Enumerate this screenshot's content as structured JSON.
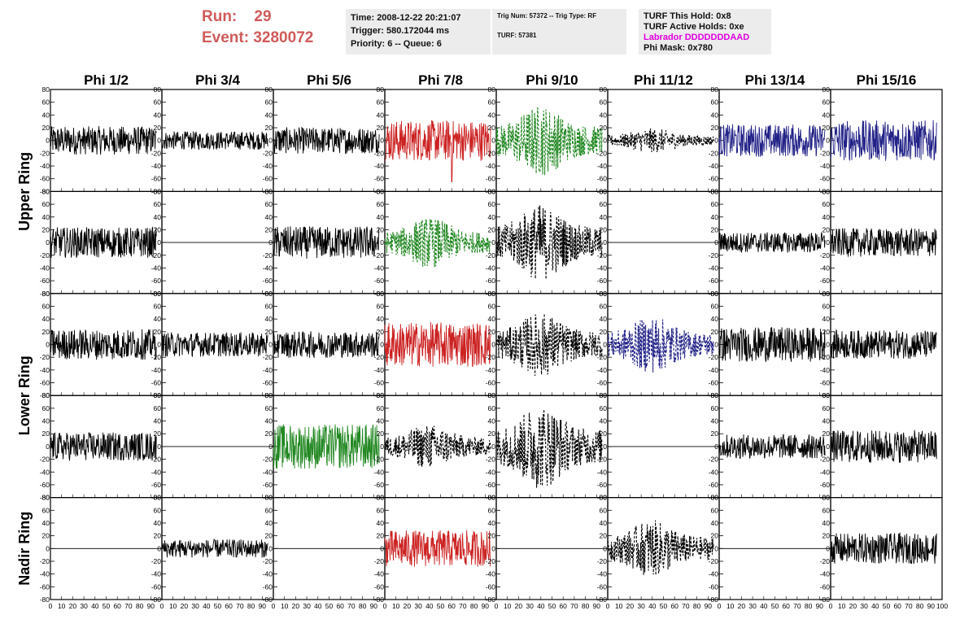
{
  "header": {
    "run_label": "Run:",
    "run_value": "29",
    "event_label": "Event:",
    "event_value": "3280072",
    "time": "Time: 2008-12-22 20:21:07",
    "trigger": "Trigger: 580.172044 ms",
    "priority": "Priority: 6 -- Queue: 6",
    "trig_num": "Trig Num: 57372 -- Trig Type: RF",
    "turf": "TURF: 57381",
    "turf_hold": "TURF This Hold: 0x8",
    "turf_active": "TURF Active Holds: 0xe",
    "labrador": "Labrador DDDDDDDAAD",
    "phi_mask": "Phi Mask: 0x780"
  },
  "colors": {
    "run_text": "#d05a5a",
    "labrador": "#e000e0",
    "black": "#000000",
    "red": "#cc2222",
    "green": "#228822",
    "blue": "#222288"
  },
  "chart_data": {
    "type": "line",
    "columns": [
      "Phi 1/2",
      "Phi 3/4",
      "Phi 5/6",
      "Phi 7/8",
      "Phi 9/10",
      "Phi 11/12",
      "Phi 13/14",
      "Phi 15/16"
    ],
    "row_labels": [
      "Upper Ring",
      "Lower Ring",
      "Nadir Ring"
    ],
    "row_label_spans": [
      [
        0,
        1
      ],
      [
        2,
        3
      ],
      [
        4,
        4
      ]
    ],
    "ylim": [
      -80,
      80
    ],
    "xlim": [
      0,
      100
    ],
    "x_sample_range": [
      0,
      95
    ],
    "y_ticks": [
      80,
      60,
      40,
      20,
      0,
      -20,
      -40,
      -60,
      -80
    ],
    "x_ticks": [
      "0",
      "10",
      "20",
      "30",
      "40",
      "50",
      "60",
      "70",
      "80",
      "90",
      "100"
    ],
    "panels": [
      [
        {
          "color": "black",
          "dashed": false,
          "amp": 14,
          "spike": 0
        },
        {
          "color": "black",
          "dashed": false,
          "amp": 9,
          "spike": 0
        },
        {
          "color": "black",
          "dashed": false,
          "amp": 13,
          "spike": 0
        },
        {
          "color": "red",
          "dashed": false,
          "amp": 20,
          "spike": -65
        },
        {
          "color": "green",
          "dashed": true,
          "amp": 35,
          "spike": 0
        },
        {
          "color": "black",
          "dashed": true,
          "amp": 12,
          "spike": 0
        },
        {
          "color": "blue",
          "dashed": false,
          "amp": 16,
          "spike": 0
        },
        {
          "color": "blue",
          "dashed": false,
          "amp": 20,
          "spike": 0
        }
      ],
      [
        {
          "color": "black",
          "dashed": false,
          "amp": 15,
          "spike": 0
        },
        {
          "color": "black",
          "dashed": false,
          "amp": 0,
          "spike": 0
        },
        {
          "color": "black",
          "dashed": false,
          "amp": 16,
          "spike": 0
        },
        {
          "color": "green",
          "dashed": true,
          "amp": 25,
          "spike": 0
        },
        {
          "color": "black",
          "dashed": true,
          "amp": 38,
          "spike": 0
        },
        {
          "color": "black",
          "dashed": false,
          "amp": 0,
          "spike": 0
        },
        {
          "color": "black",
          "dashed": false,
          "amp": 10,
          "spike": 0
        },
        {
          "color": "black",
          "dashed": false,
          "amp": 14,
          "spike": 0
        }
      ],
      [
        {
          "color": "black",
          "dashed": false,
          "amp": 15,
          "spike": 0
        },
        {
          "color": "black",
          "dashed": false,
          "amp": 12,
          "spike": 0
        },
        {
          "color": "black",
          "dashed": false,
          "amp": 13,
          "spike": 0
        },
        {
          "color": "red",
          "dashed": false,
          "amp": 22,
          "spike": 0
        },
        {
          "color": "black",
          "dashed": true,
          "amp": 32,
          "spike": 0
        },
        {
          "color": "blue",
          "dashed": true,
          "amp": 28,
          "spike": 0
        },
        {
          "color": "black",
          "dashed": false,
          "amp": 17,
          "spike": 0
        },
        {
          "color": "black",
          "dashed": false,
          "amp": 14,
          "spike": 0
        }
      ],
      [
        {
          "color": "black",
          "dashed": false,
          "amp": 14,
          "spike": 0
        },
        {
          "color": "black",
          "dashed": false,
          "amp": 0,
          "spike": 0
        },
        {
          "color": "green",
          "dashed": false,
          "amp": 22,
          "spike": 0
        },
        {
          "color": "black",
          "dashed": true,
          "amp": 22,
          "spike": 0
        },
        {
          "color": "black",
          "dashed": true,
          "amp": 42,
          "spike": 0
        },
        {
          "color": "black",
          "dashed": false,
          "amp": 0,
          "spike": 0
        },
        {
          "color": "black",
          "dashed": false,
          "amp": 12,
          "spike": 0
        },
        {
          "color": "black",
          "dashed": false,
          "amp": 16,
          "spike": 0
        }
      ],
      [
        {
          "color": "black",
          "dashed": false,
          "amp": 0,
          "spike": 0
        },
        {
          "color": "black",
          "dashed": false,
          "amp": 9,
          "spike": 0
        },
        {
          "color": "black",
          "dashed": false,
          "amp": 0,
          "spike": 0
        },
        {
          "color": "red",
          "dashed": false,
          "amp": 18,
          "spike": 0
        },
        {
          "color": "black",
          "dashed": false,
          "amp": 0,
          "spike": 0
        },
        {
          "color": "black",
          "dashed": true,
          "amp": 28,
          "spike": 0
        },
        {
          "color": "black",
          "dashed": false,
          "amp": 0,
          "spike": 0
        },
        {
          "color": "black",
          "dashed": false,
          "amp": 15,
          "spike": 0
        }
      ]
    ]
  }
}
